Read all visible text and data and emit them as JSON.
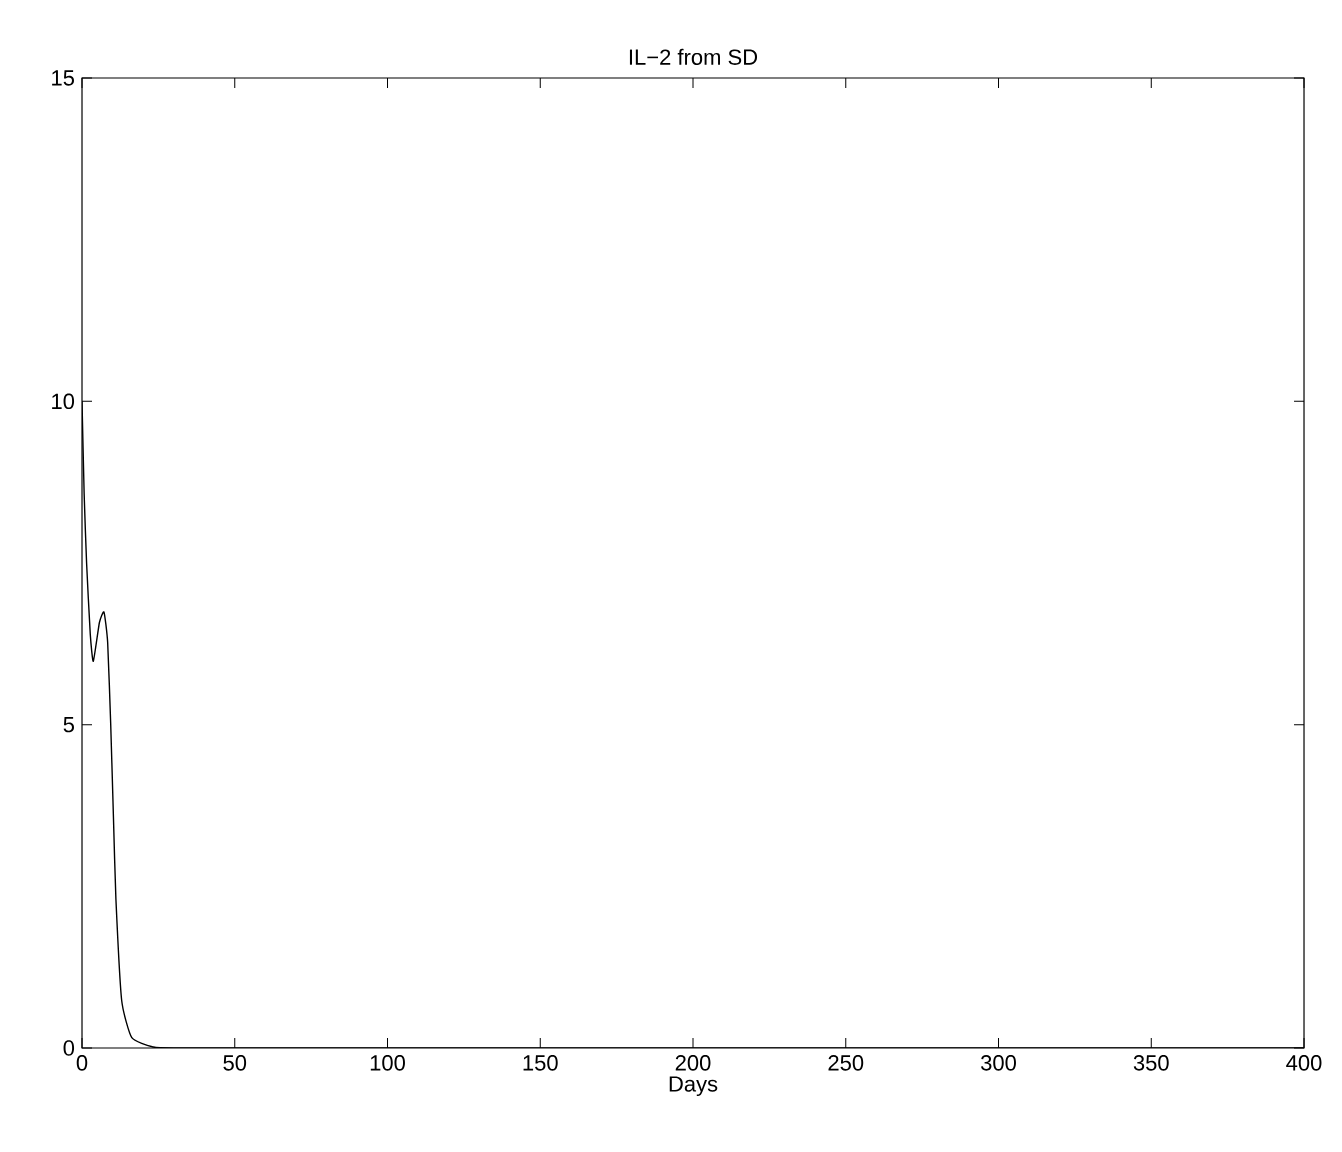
{
  "chart_data": {
    "type": "line",
    "title": "IL−2 from SD",
    "xlabel": "Days",
    "x": [
      0,
      0.7,
      1.5,
      2.7,
      3.7,
      5.7,
      7.2,
      8.4,
      9.4,
      10.3,
      11.1,
      13,
      16.3,
      23,
      30,
      100,
      200,
      300,
      400
    ],
    "values": [
      10,
      8.57,
      7.5,
      6.4,
      5.98,
      6.58,
      6.74,
      6.27,
      5.0,
      3.55,
      2.3,
      0.73,
      0.16,
      0.02,
      0,
      0,
      0,
      0,
      0
    ],
    "color": "#000000",
    "xlim": [
      0,
      400
    ],
    "xticks": [
      0,
      50,
      100,
      150,
      200,
      250,
      300,
      350,
      400
    ],
    "ylim": [
      0,
      15
    ],
    "yticks": [
      0,
      5,
      10,
      15
    ],
    "grid": false
  }
}
